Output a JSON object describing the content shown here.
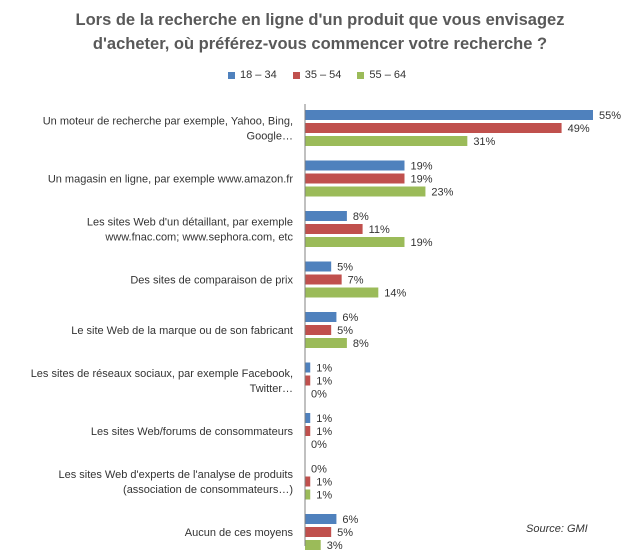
{
  "chart_data": {
    "type": "bar",
    "orientation": "horizontal",
    "title": "Lors de la recherche en ligne d'un produit que vous envisagez d'acheter, où préférez-vous commencer votre recherche ?",
    "title_lines": [
      "Lors de la recherche en ligne d'un produit que vous envisagez",
      "d'acheter, où préférez-vous commencer votre recherche ?"
    ],
    "categories": [
      [
        "Un moteur de recherche par exemple, Yahoo, Bing,",
        "Google…"
      ],
      [
        "Un magasin en ligne, par exemple www.amazon.fr"
      ],
      [
        "Les sites Web d'un détaillant, par exemple",
        "www.fnac.com; www.sephora.com, etc"
      ],
      [
        "Des sites de comparaison de prix"
      ],
      [
        "Le site Web de la marque ou de son fabricant"
      ],
      [
        "Les sites de réseaux sociaux, par exemple Facebook,",
        "Twitter…"
      ],
      [
        "Les sites Web/forums de consommateurs"
      ],
      [
        "Les sites Web d'experts de l'analyse de produits",
        "(association de consommateurs…)"
      ],
      [
        "Aucun de ces moyens"
      ]
    ],
    "series": [
      {
        "name": "18 – 34",
        "color": "#4f81bd",
        "values": [
          55,
          19,
          8,
          5,
          6,
          1,
          1,
          0,
          6
        ]
      },
      {
        "name": "35 – 54",
        "color": "#c0504d",
        "values": [
          49,
          19,
          11,
          7,
          5,
          1,
          1,
          1,
          5
        ]
      },
      {
        "name": "55 – 64",
        "color": "#9bbb59",
        "values": [
          31,
          23,
          19,
          14,
          8,
          0,
          0,
          1,
          3
        ]
      }
    ],
    "value_suffix": "%",
    "xlim": [
      0,
      55
    ],
    "grid": false,
    "legend_position": "top"
  },
  "source": "Source: GMI"
}
